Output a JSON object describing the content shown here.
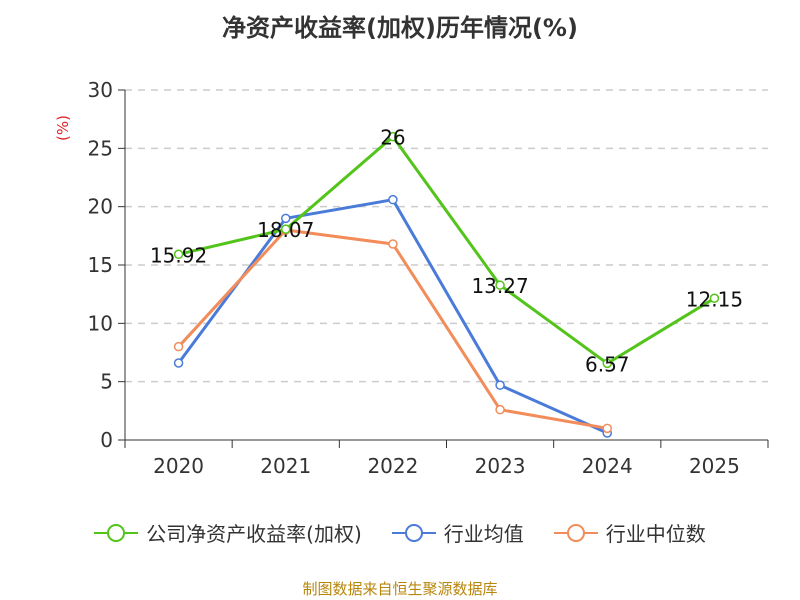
{
  "chart_data": {
    "type": "line",
    "title": "净资产收益率(加权)历年情况(%)",
    "ylabel": "(%)",
    "xlabel": "",
    "ylim": [
      0,
      30
    ],
    "yticks": [
      0,
      5,
      10,
      15,
      20,
      25,
      30
    ],
    "categories": [
      "2020",
      "2021",
      "2022",
      "2023",
      "2024",
      "2025"
    ],
    "series": [
      {
        "name": "公司净资产收益率(加权)",
        "color": "#52c41a",
        "values": [
          15.92,
          18.07,
          26,
          13.27,
          6.57,
          12.15
        ],
        "labels": [
          "15.92",
          "18.07",
          "26",
          "13.27",
          "6.57",
          "12.15"
        ]
      },
      {
        "name": "行业均值",
        "color": "#4a7bd9",
        "values": [
          6.6,
          19.0,
          20.6,
          4.7,
          0.6,
          null
        ]
      },
      {
        "name": "行业中位数",
        "color": "#f28c5a",
        "values": [
          8.0,
          18.0,
          16.8,
          2.6,
          1.0,
          null
        ]
      }
    ]
  },
  "source": "制图数据来自恒生聚源数据库"
}
